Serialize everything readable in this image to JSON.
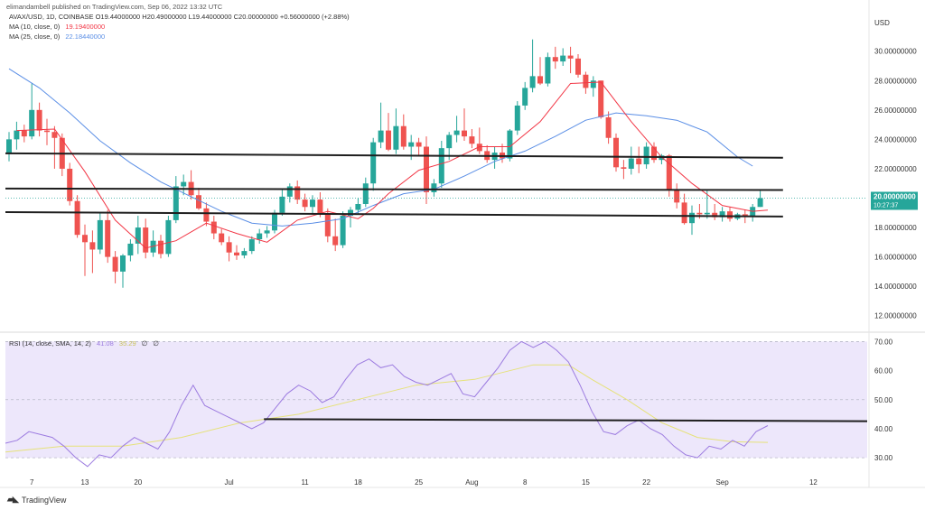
{
  "header": {
    "text": "elimandambell published on TradingView.com, Sep 06, 2022 13:32 UTC"
  },
  "legend": {
    "ohlc_line": "AVAX/USD, 1D, COINBASE  O19.44000000  H20.49000000  L19.44000000  C20.00000000  +0.56000000 (+2.88%)",
    "ma10_label": "MA (10, close, 0)",
    "ma10_value": "19.19400000",
    "ma25_label": "MA (25, close, 0)",
    "ma25_value": "22.18440000",
    "rsi_label": "RSI (14, close, SMA, 14, 2)",
    "rsi_value": "41.08",
    "rsi_sma_value": "35.29",
    "rsi_extra1": "∅",
    "rsi_extra2": "∅"
  },
  "price_axis": {
    "currency": "USD",
    "ticks": [
      "30.00000000",
      "28.00000000",
      "26.00000000",
      "24.00000000",
      "22.00000000",
      "20.00000000",
      "18.00000000",
      "16.00000000",
      "14.00000000",
      "12.00000000"
    ],
    "current_price": "20.00000000",
    "countdown": "10:27:37"
  },
  "rsi_axis": {
    "ticks": [
      "70.00",
      "60.00",
      "50.00",
      "40.00",
      "30.00"
    ]
  },
  "time_axis": {
    "labels": [
      "7",
      "13",
      "20",
      "Jul",
      "11",
      "18",
      "25",
      "Aug",
      "8",
      "15",
      "22",
      "Sep",
      "12"
    ]
  },
  "footer": {
    "brand": "TradingView"
  },
  "colors": {
    "up": "#26a69a",
    "down": "#ef5350",
    "ma10": "#f23645",
    "ma25": "#5b8fe6",
    "rsi": "#9c7be0",
    "rsi_sma": "#e6e27a",
    "rsi_band": "#ede7fb",
    "price_label_bg": "#26a69a"
  },
  "chart_data": [
    {
      "type": "candlestick",
      "title": "AVAX/USD, 1D, COINBASE",
      "ylim": [
        11,
        32.5
      ],
      "x_start_index": 0,
      "candles": [
        [
          23.0,
          24.5,
          22.5,
          24.0
        ],
        [
          24.0,
          25.2,
          23.3,
          24.6
        ],
        [
          24.6,
          25.0,
          23.8,
          24.2
        ],
        [
          24.2,
          27.8,
          24.0,
          26.0
        ],
        [
          26.0,
          26.5,
          24.2,
          24.6
        ],
        [
          24.6,
          25.4,
          23.6,
          24.5
        ],
        [
          24.5,
          24.9,
          22.0,
          24.1
        ],
        [
          24.1,
          24.4,
          21.5,
          22.0
        ],
        [
          22.0,
          22.4,
          19.5,
          19.8
        ],
        [
          19.8,
          20.2,
          17.3,
          17.5
        ],
        [
          17.5,
          18.2,
          14.7,
          17.0
        ],
        [
          17.0,
          17.8,
          14.9,
          16.5
        ],
        [
          16.5,
          19.0,
          16.2,
          18.5
        ],
        [
          18.5,
          19.2,
          15.6,
          16.0
        ],
        [
          16.0,
          16.4,
          14.2,
          15.0
        ],
        [
          15.0,
          16.2,
          13.9,
          16.1
        ],
        [
          16.1,
          17.2,
          15.7,
          16.9
        ],
        [
          16.9,
          18.8,
          16.2,
          18.0
        ],
        [
          18.0,
          18.6,
          15.9,
          16.3
        ],
        [
          16.3,
          17.8,
          16.0,
          17.1
        ],
        [
          17.1,
          17.5,
          15.9,
          16.2
        ],
        [
          16.2,
          18.8,
          16.0,
          18.5
        ],
        [
          18.5,
          21.5,
          18.3,
          20.8
        ],
        [
          20.8,
          21.6,
          20.2,
          21.1
        ],
        [
          21.1,
          21.9,
          19.9,
          20.2
        ],
        [
          20.2,
          20.7,
          19.2,
          19.3
        ],
        [
          19.3,
          19.7,
          18.1,
          18.4
        ],
        [
          18.4,
          18.8,
          17.2,
          17.6
        ],
        [
          17.6,
          17.9,
          16.8,
          17.0
        ],
        [
          17.0,
          17.4,
          15.7,
          16.3
        ],
        [
          16.3,
          16.8,
          15.8,
          16.1
        ],
        [
          16.1,
          16.6,
          15.9,
          16.4
        ],
        [
          16.4,
          17.4,
          16.2,
          17.2
        ],
        [
          17.2,
          17.9,
          16.9,
          17.6
        ],
        [
          17.6,
          18.1,
          17.3,
          17.8
        ],
        [
          17.8,
          19.2,
          17.6,
          19.0
        ],
        [
          19.0,
          20.6,
          18.8,
          20.1
        ],
        [
          20.1,
          21.0,
          19.7,
          20.8
        ],
        [
          20.8,
          21.2,
          19.6,
          19.9
        ],
        [
          19.9,
          20.3,
          19.1,
          19.4
        ],
        [
          19.4,
          20.2,
          18.9,
          19.9
        ],
        [
          19.9,
          20.4,
          18.7,
          18.9
        ],
        [
          18.9,
          19.3,
          17.0,
          17.4
        ],
        [
          17.4,
          18.6,
          16.4,
          16.8
        ],
        [
          16.8,
          19.1,
          16.6,
          18.8
        ],
        [
          18.8,
          19.4,
          18.0,
          19.2
        ],
        [
          19.2,
          20.0,
          18.9,
          19.6
        ],
        [
          19.6,
          21.4,
          19.4,
          21.0
        ],
        [
          21.0,
          24.1,
          20.5,
          23.8
        ],
        [
          23.8,
          26.5,
          23.4,
          24.6
        ],
        [
          24.6,
          25.8,
          23.2,
          23.3
        ],
        [
          23.3,
          26.1,
          23.0,
          24.9
        ],
        [
          24.9,
          25.7,
          23.3,
          23.5
        ],
        [
          23.5,
          24.3,
          22.6,
          23.8
        ],
        [
          23.8,
          24.1,
          22.9,
          23.5
        ],
        [
          23.5,
          24.2,
          19.6,
          20.4
        ],
        [
          20.4,
          21.3,
          20.1,
          21.0
        ],
        [
          21.0,
          23.9,
          20.7,
          23.4
        ],
        [
          23.4,
          24.5,
          22.6,
          24.3
        ],
        [
          24.3,
          25.6,
          23.8,
          24.6
        ],
        [
          24.6,
          26.1,
          23.9,
          24.2
        ],
        [
          24.2,
          24.7,
          23.4,
          23.7
        ],
        [
          23.7,
          24.8,
          23.0,
          23.2
        ],
        [
          23.2,
          23.6,
          22.4,
          22.6
        ],
        [
          22.6,
          23.5,
          22.0,
          23.1
        ],
        [
          23.1,
          23.7,
          22.4,
          22.7
        ],
        [
          22.7,
          24.7,
          22.5,
          24.6
        ],
        [
          24.6,
          26.6,
          24.3,
          26.3
        ],
        [
          26.3,
          27.9,
          26.0,
          27.5
        ],
        [
          27.5,
          30.8,
          27.2,
          28.3
        ],
        [
          28.3,
          29.6,
          27.7,
          27.8
        ],
        [
          27.8,
          29.9,
          27.6,
          29.6
        ],
        [
          29.6,
          30.3,
          28.8,
          29.3
        ],
        [
          29.3,
          30.2,
          29.0,
          29.7
        ],
        [
          29.7,
          30.3,
          28.5,
          29.5
        ],
        [
          29.5,
          29.8,
          28.2,
          28.4
        ],
        [
          28.4,
          28.6,
          27.1,
          27.5
        ],
        [
          27.5,
          28.3,
          26.9,
          28.0
        ],
        [
          28.0,
          28.0,
          25.4,
          25.5
        ],
        [
          25.5,
          25.9,
          23.7,
          24.1
        ],
        [
          24.1,
          24.4,
          21.8,
          22.1
        ],
        [
          22.1,
          22.6,
          21.3,
          22.0
        ],
        [
          22.0,
          23.5,
          21.6,
          22.7
        ],
        [
          22.7,
          23.5,
          21.7,
          22.3
        ],
        [
          22.3,
          23.8,
          22.0,
          23.5
        ],
        [
          23.5,
          23.8,
          22.4,
          22.6
        ],
        [
          22.6,
          23.0,
          22.3,
          22.9
        ],
        [
          22.9,
          23.0,
          20.1,
          20.6
        ],
        [
          20.6,
          21.0,
          19.3,
          19.7
        ],
        [
          19.7,
          20.3,
          18.2,
          18.3
        ],
        [
          18.3,
          19.5,
          17.5,
          19.0
        ],
        [
          19.0,
          19.6,
          18.6,
          18.9
        ],
        [
          18.9,
          20.5,
          18.6,
          19.0
        ],
        [
          19.0,
          19.6,
          18.5,
          18.7
        ],
        [
          18.7,
          19.4,
          18.4,
          19.1
        ],
        [
          19.1,
          19.4,
          18.4,
          18.6
        ],
        [
          18.6,
          19.0,
          18.5,
          18.9
        ],
        [
          18.9,
          19.2,
          18.3,
          18.8
        ],
        [
          18.8,
          19.6,
          18.4,
          19.4
        ],
        [
          19.4,
          20.5,
          19.4,
          20.0
        ]
      ],
      "ma10": [
        [
          1,
          24.6
        ],
        [
          6,
          24.7
        ],
        [
          10,
          21.8
        ],
        [
          14,
          18.5
        ],
        [
          18,
          16.6
        ],
        [
          22,
          17.1
        ],
        [
          26,
          18.3
        ],
        [
          30,
          17.6
        ],
        [
          34,
          17.0
        ],
        [
          38,
          18.5
        ],
        [
          42,
          19.1
        ],
        [
          46,
          18.6
        ],
        [
          48,
          19.3
        ],
        [
          50,
          20.3
        ],
        [
          54,
          21.9
        ],
        [
          58,
          22.5
        ],
        [
          62,
          23.5
        ],
        [
          66,
          23.5
        ],
        [
          70,
          25.2
        ],
        [
          74,
          27.8
        ],
        [
          78,
          27.9
        ],
        [
          82,
          25.2
        ],
        [
          86,
          22.8
        ],
        [
          90,
          21.0
        ],
        [
          94,
          19.5
        ],
        [
          98,
          19.1
        ],
        [
          100,
          19.19
        ]
      ],
      "ma25": [
        [
          0,
          28.8
        ],
        [
          4,
          27.5
        ],
        [
          8,
          25.8
        ],
        [
          12,
          23.9
        ],
        [
          16,
          22.4
        ],
        [
          20,
          21.1
        ],
        [
          24,
          20.1
        ],
        [
          28,
          19.1
        ],
        [
          32,
          18.3
        ],
        [
          36,
          18.1
        ],
        [
          40,
          18.3
        ],
        [
          44,
          18.6
        ],
        [
          48,
          19.5
        ],
        [
          52,
          20.3
        ],
        [
          56,
          20.6
        ],
        [
          60,
          21.5
        ],
        [
          64,
          22.5
        ],
        [
          68,
          23.2
        ],
        [
          72,
          24.2
        ],
        [
          76,
          25.3
        ],
        [
          80,
          25.8
        ],
        [
          84,
          25.6
        ],
        [
          88,
          25.3
        ],
        [
          92,
          24.5
        ],
        [
          96,
          22.8
        ],
        [
          98,
          22.18
        ]
      ],
      "horizontal_lines": [
        {
          "from": 0,
          "to": 102,
          "y_from": 23.05,
          "y_to": 22.75
        },
        {
          "from": 0,
          "to": 102,
          "y_from": 20.65,
          "y_to": 20.55
        },
        {
          "from": 0,
          "to": 102,
          "y_from": 19.05,
          "y_to": 18.75
        }
      ],
      "current_price_line": 20.0
    },
    {
      "type": "line",
      "title": "RSI (14, close, SMA, 14, 2)",
      "ylim": [
        26,
        72
      ],
      "band": [
        30,
        70
      ],
      "midline": 50,
      "rsi": [
        [
          0,
          35
        ],
        [
          2,
          36
        ],
        [
          4,
          39
        ],
        [
          6,
          38
        ],
        [
          8,
          37
        ],
        [
          10,
          34
        ],
        [
          12,
          30
        ],
        [
          14,
          27
        ],
        [
          16,
          31
        ],
        [
          18,
          30
        ],
        [
          20,
          34
        ],
        [
          22,
          37
        ],
        [
          24,
          35
        ],
        [
          26,
          33
        ],
        [
          28,
          39
        ],
        [
          30,
          48
        ],
        [
          32,
          55
        ],
        [
          34,
          48
        ],
        [
          36,
          46
        ],
        [
          38,
          44
        ],
        [
          40,
          42
        ],
        [
          42,
          40
        ],
        [
          44,
          42
        ],
        [
          46,
          47
        ],
        [
          48,
          52
        ],
        [
          50,
          55
        ],
        [
          52,
          53
        ],
        [
          54,
          49
        ],
        [
          56,
          51
        ],
        [
          58,
          57
        ],
        [
          60,
          62
        ],
        [
          62,
          64
        ],
        [
          64,
          61
        ],
        [
          66,
          62
        ],
        [
          68,
          58
        ],
        [
          70,
          56
        ],
        [
          72,
          55
        ],
        [
          74,
          57
        ],
        [
          76,
          59
        ],
        [
          78,
          52
        ],
        [
          80,
          51
        ],
        [
          82,
          56
        ],
        [
          84,
          61
        ],
        [
          86,
          67
        ],
        [
          88,
          70
        ],
        [
          90,
          68
        ],
        [
          92,
          70
        ],
        [
          94,
          67
        ],
        [
          96,
          63
        ],
        [
          98,
          55
        ],
        [
          100,
          46
        ],
        [
          102,
          39
        ],
        [
          104,
          38
        ],
        [
          106,
          41
        ],
        [
          108,
          43
        ],
        [
          110,
          40
        ],
        [
          112,
          38
        ],
        [
          114,
          34
        ],
        [
          116,
          31
        ],
        [
          118,
          30
        ],
        [
          120,
          34
        ],
        [
          122,
          33
        ],
        [
          124,
          36
        ],
        [
          126,
          34
        ],
        [
          128,
          39
        ],
        [
          130,
          41.08
        ]
      ],
      "rsi_sma": [
        [
          0,
          32
        ],
        [
          10,
          34
        ],
        [
          20,
          34
        ],
        [
          30,
          37
        ],
        [
          40,
          42
        ],
        [
          50,
          45
        ],
        [
          60,
          50
        ],
        [
          70,
          55
        ],
        [
          80,
          57
        ],
        [
          90,
          62
        ],
        [
          96,
          62
        ],
        [
          100,
          57
        ],
        [
          106,
          50
        ],
        [
          112,
          42
        ],
        [
          118,
          37
        ],
        [
          124,
          35.5
        ],
        [
          130,
          35.29
        ]
      ],
      "rsi_x_scale_max": 130,
      "horizontal_lines": [
        {
          "from_frac": 0.3,
          "to_frac": 1.0,
          "y_from": 43.3,
          "y_to": 42.6
        }
      ]
    }
  ]
}
